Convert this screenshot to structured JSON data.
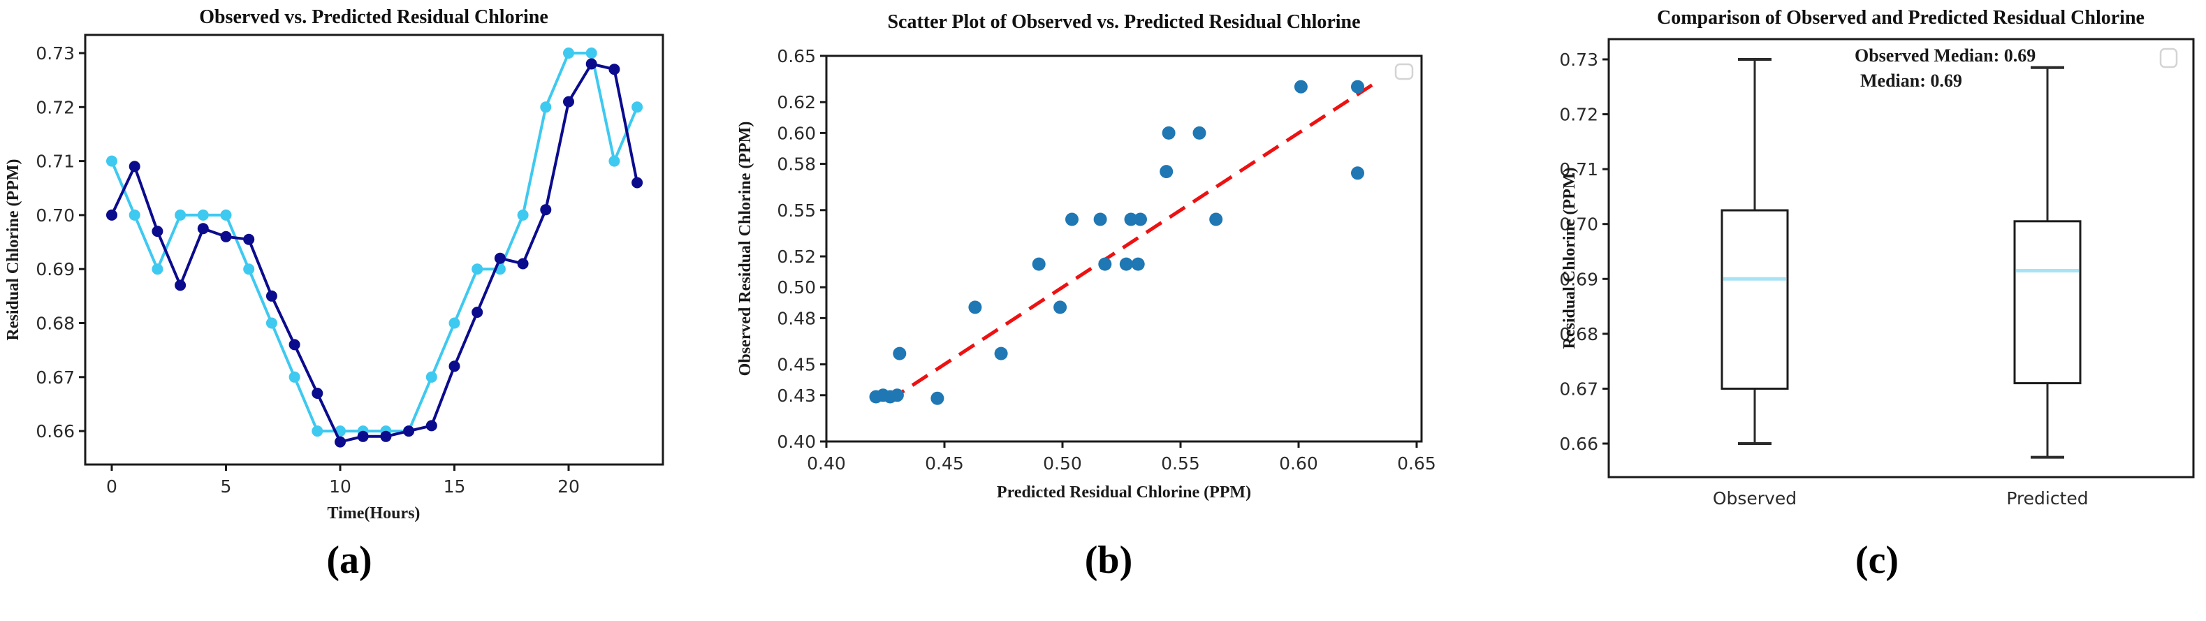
{
  "figure": {
    "captions": [
      "(a)",
      "(b)",
      "(c)"
    ]
  },
  "chart_data": [
    {
      "type": "line",
      "title": "Observed vs. Predicted Residual Chlorine",
      "xlabel": "Time(Hours)",
      "ylabel": "Residual Chlorine (PPM)",
      "xlim": [
        -1.16,
        24.13
      ],
      "ylim": [
        0.654,
        0.7334
      ],
      "grid": false,
      "xticks": [
        0,
        5,
        10,
        15,
        20
      ],
      "xticklabels": [
        "0",
        "5",
        "10",
        "15",
        "20"
      ],
      "yticks": [
        0.66,
        0.67,
        0.68,
        0.69,
        0.7,
        0.71,
        0.72,
        0.73
      ],
      "yticklabels": [
        "0.66",
        "0.67",
        "0.68",
        "0.69",
        "0.70",
        "0.71",
        "0.72",
        "0.73"
      ],
      "x_hours": [
        0,
        1,
        2,
        3,
        4,
        5,
        6,
        7,
        8,
        9,
        10,
        11,
        12,
        13,
        14,
        15,
        16,
        17,
        18,
        19,
        20,
        21,
        22,
        23
      ],
      "series": [
        {
          "name": "Observed",
          "color": "#3ec9f0",
          "values": [
            0.71,
            0.7,
            0.69,
            0.7,
            0.7,
            0.7,
            0.69,
            0.68,
            0.67,
            0.66,
            0.66,
            0.66,
            0.66,
            0.66,
            0.67,
            0.68,
            0.69,
            0.69,
            0.7,
            0.72,
            0.73,
            0.73,
            0.71,
            0.72
          ]
        },
        {
          "name": "Predicted",
          "color": "#0b0b8e",
          "values": [
            0.7,
            0.709,
            0.697,
            0.687,
            0.6975,
            0.696,
            0.6955,
            0.685,
            0.676,
            0.667,
            0.658,
            0.659,
            0.659,
            0.66,
            0.661,
            0.672,
            0.682,
            0.692,
            0.691,
            0.701,
            0.721,
            0.728,
            0.727,
            0.706
          ]
        }
      ]
    },
    {
      "type": "scatter",
      "title": "Scatter Plot of Observed vs. Predicted Residual Chlorine",
      "xlabel": "Predicted Residual Chlorine (PPM)",
      "ylabel": "Observed Residual Chlorine (PPM)",
      "xlim": [
        0.4,
        0.652
      ],
      "ylim": [
        0.4,
        0.651
      ],
      "grid": false,
      "xticks": [
        0.4,
        0.45,
        0.5,
        0.55,
        0.6,
        0.65
      ],
      "xticklabels": [
        "0.40",
        "0.45",
        "0.50",
        "0.55",
        "0.60",
        "0.65"
      ],
      "yticks": [
        0.4,
        0.43,
        0.45,
        0.48,
        0.5,
        0.52,
        0.55,
        0.58,
        0.6,
        0.62,
        0.65
      ],
      "yticklabels": [
        "0.40",
        "0.43",
        "0.45",
        "0.48",
        "0.50",
        "0.52",
        "0.55",
        "0.58",
        "0.60",
        "0.62",
        "0.65"
      ],
      "point_color": "#1f77b4",
      "points": [
        [
          0.421,
          0.429
        ],
        [
          0.424,
          0.43
        ],
        [
          0.427,
          0.429
        ],
        [
          0.43,
          0.43
        ],
        [
          0.431,
          0.457
        ],
        [
          0.447,
          0.428
        ],
        [
          0.463,
          0.487
        ],
        [
          0.474,
          0.457
        ],
        [
          0.499,
          0.487
        ],
        [
          0.49,
          0.515
        ],
        [
          0.518,
          0.515
        ],
        [
          0.527,
          0.515
        ],
        [
          0.532,
          0.515
        ],
        [
          0.504,
          0.544
        ],
        [
          0.516,
          0.544
        ],
        [
          0.529,
          0.544
        ],
        [
          0.533,
          0.544
        ],
        [
          0.565,
          0.544
        ],
        [
          0.544,
          0.575
        ],
        [
          0.545,
          0.6
        ],
        [
          0.558,
          0.6
        ],
        [
          0.601,
          0.63
        ],
        [
          0.625,
          0.63
        ],
        [
          0.625,
          0.574
        ]
      ],
      "trend_line": {
        "x": [
          0.4265,
          0.6325
        ],
        "y": [
          0.4265,
          0.6325
        ],
        "color": "#ee1111",
        "style": "dashed"
      },
      "legend": {
        "visible": true,
        "entries": []
      }
    },
    {
      "type": "box",
      "title": "Comparison of Observed and Predicted Residual Chlorine",
      "ylabel": "Residual Chlorine (PPM)",
      "ylim": [
        0.654,
        0.7337
      ],
      "grid": false,
      "categories": [
        "Observed",
        "Predicted"
      ],
      "yticks": [
        0.66,
        0.67,
        0.68,
        0.69,
        0.7,
        0.71,
        0.72,
        0.73
      ],
      "yticklabels": [
        "0.66",
        "0.67",
        "0.68",
        "0.69",
        "0.70",
        "0.71",
        "0.72",
        "0.73"
      ],
      "boxes": [
        {
          "category": "Observed",
          "whisker_low": 0.66,
          "q1": 0.67,
          "median": 0.69,
          "q3": 0.7025,
          "whisker_high": 0.73
        },
        {
          "category": "Predicted",
          "whisker_low": 0.6575,
          "q1": 0.671,
          "median": 0.6915,
          "q3": 0.7005,
          "whisker_high": 0.7285
        }
      ],
      "median_color": "#a8e3f5",
      "box_line_color": "#1c1c1c",
      "annotation": {
        "lines": [
          "Observed Median: 0.69",
          "Median: 0.69"
        ]
      },
      "legend": {
        "visible": true,
        "entries": []
      }
    }
  ]
}
